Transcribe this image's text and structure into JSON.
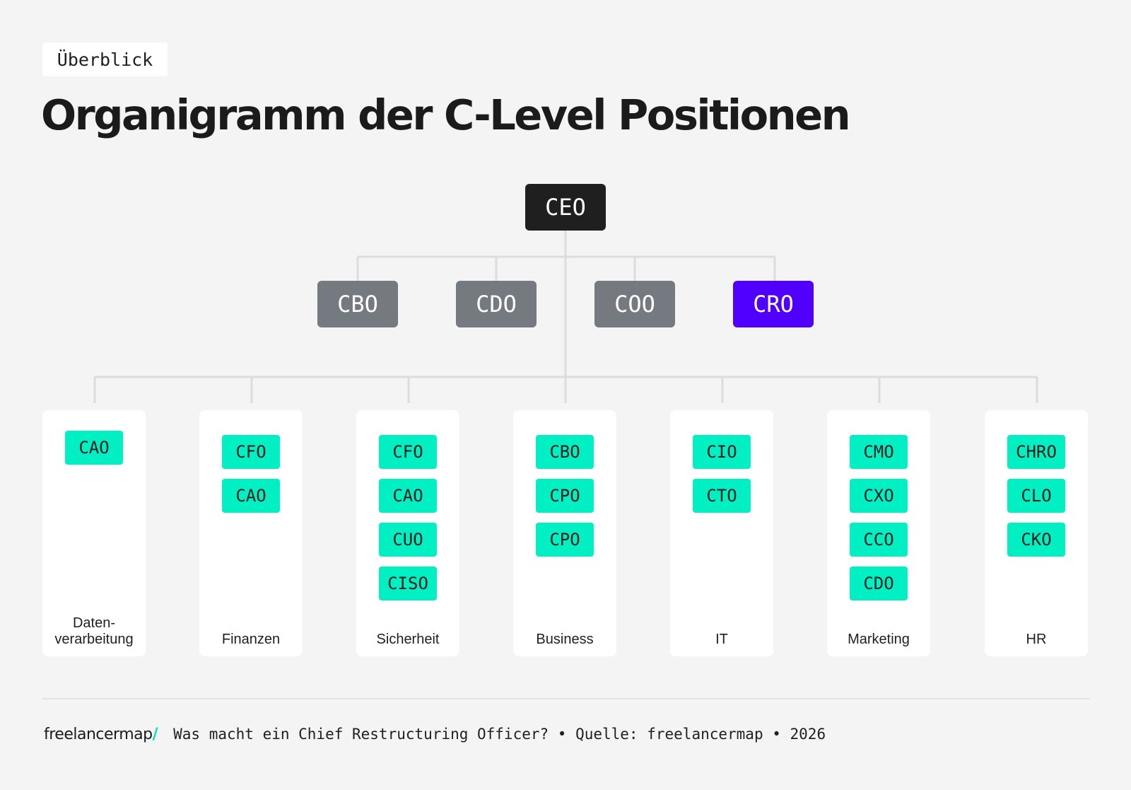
{
  "header": {
    "tag": "Überblick",
    "title": "Organigramm der C-Level Positionen"
  },
  "top": {
    "label": "CEO"
  },
  "middle": [
    {
      "label": "CBO",
      "accent": false
    },
    {
      "label": "CDO",
      "accent": false
    },
    {
      "label": "COO",
      "accent": false
    },
    {
      "label": "CRO",
      "accent": true
    }
  ],
  "departments": [
    {
      "label": "Daten-\nverarbeitung",
      "roles": [
        "CAO"
      ]
    },
    {
      "label": "Finanzen",
      "roles": [
        "CFO",
        "CAO"
      ]
    },
    {
      "label": "Sicherheit",
      "roles": [
        "CFO",
        "CAO",
        "CUO",
        "CISO"
      ]
    },
    {
      "label": "Business",
      "roles": [
        "CBO",
        "CPO",
        "CPO"
      ]
    },
    {
      "label": "IT",
      "roles": [
        "CIO",
        "CTO"
      ]
    },
    {
      "label": "Marketing",
      "roles": [
        "CMO",
        "CXO",
        "CCO",
        "CDO"
      ]
    },
    {
      "label": "HR",
      "roles": [
        "CHRO",
        "CLO",
        "CKO"
      ]
    }
  ],
  "colors": {
    "background": "#f4f4f4",
    "ceo": "#1f1f1f",
    "middle": "#747a80",
    "accent": "#4f00ff",
    "chip": "#00f0c3",
    "connector": "#dcdcdc"
  },
  "footer": {
    "logo_text": "freelancermap",
    "logo_slash": "/",
    "text": "Was macht ein Chief Restructuring Officer? • Quelle: freelancermap • 2026"
  }
}
